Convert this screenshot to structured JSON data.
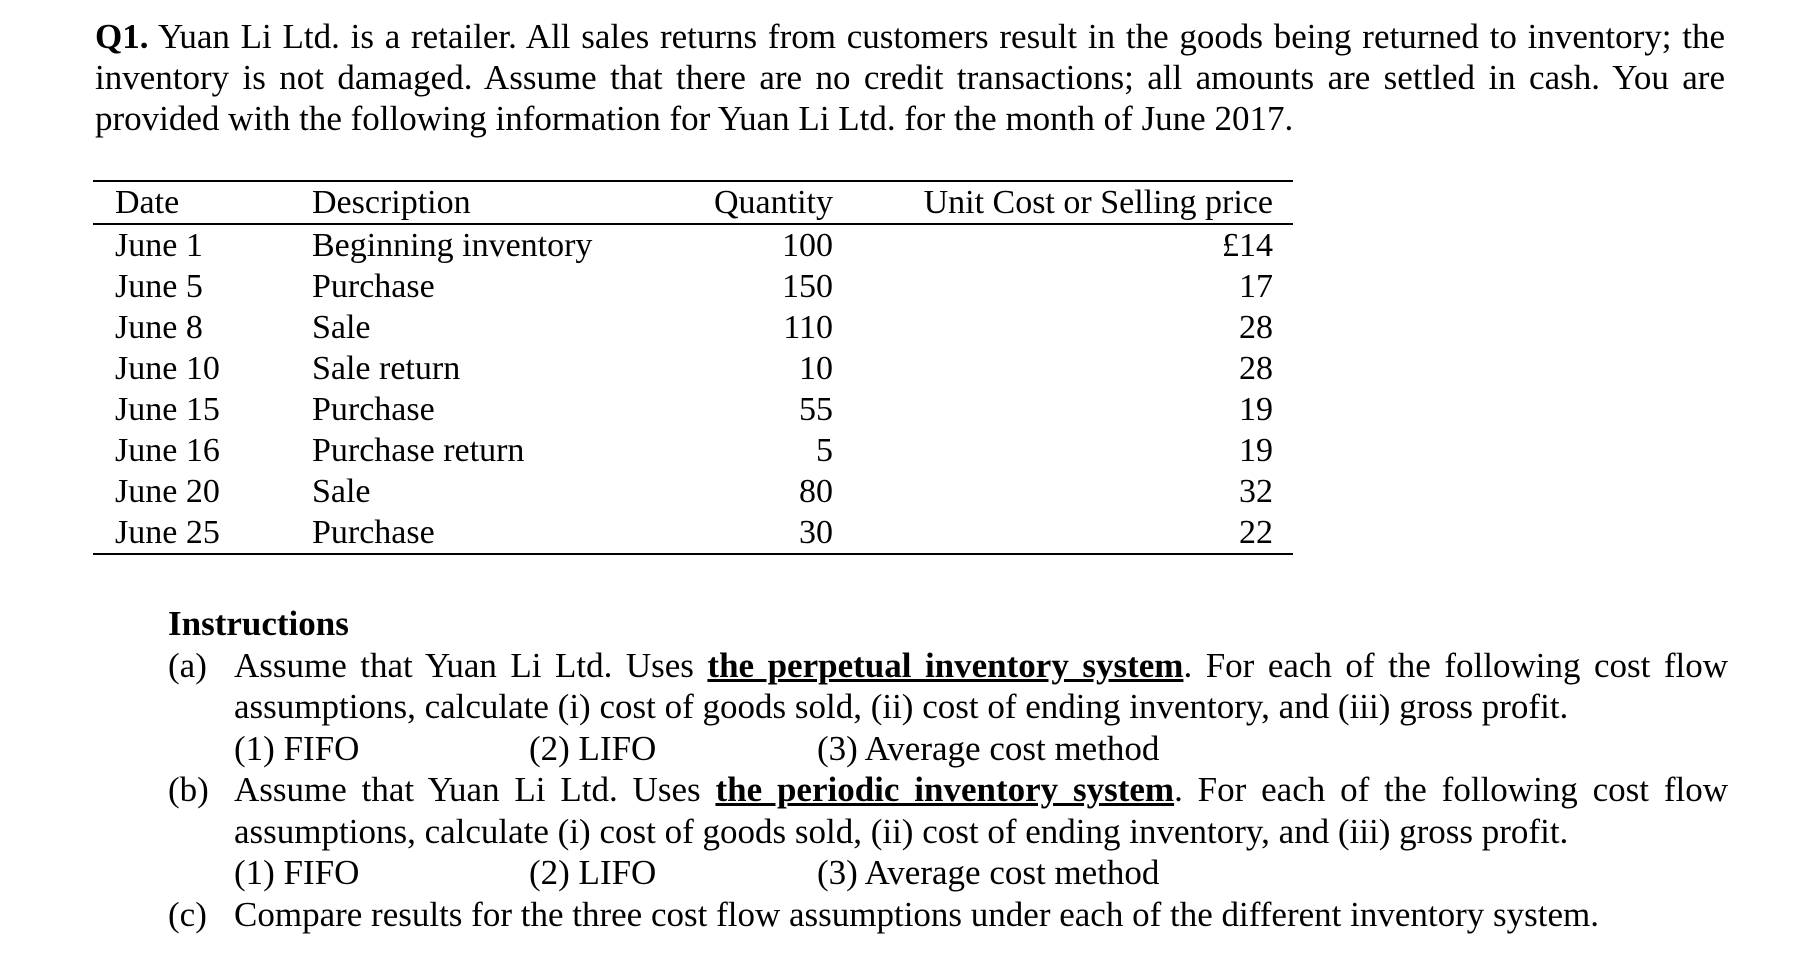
{
  "intro": {
    "question_label": "Q1.",
    "text": "Yuan Li Ltd. is a retailer. All sales returns from customers result in the goods being returned to inventory; the inventory is not damaged. Assume that there are no credit transactions; all amounts are settled in cash. You are provided with the following information for Yuan Li Ltd. for the month of June 2017."
  },
  "table": {
    "headers": [
      "Date",
      "Description",
      "Quantity",
      "Unit Cost or Selling price"
    ],
    "rows": [
      [
        "June 1",
        "Beginning inventory",
        "100",
        "£14"
      ],
      [
        "June 5",
        "Purchase",
        "150",
        "17"
      ],
      [
        "June 8",
        "Sale",
        "110",
        "28"
      ],
      [
        "June 10",
        "Sale return",
        "10",
        "28"
      ],
      [
        "June 15",
        "Purchase",
        "55",
        "19"
      ],
      [
        "June 16",
        "Purchase return",
        "5",
        "19"
      ],
      [
        "June 20",
        "Sale",
        "80",
        "32"
      ],
      [
        "June 25",
        "Purchase",
        "30",
        "22"
      ]
    ]
  },
  "instructions": {
    "heading": "Instructions",
    "parts": [
      {
        "marker": "(a)",
        "pre": "Assume that Yuan Li Ltd. Uses ",
        "emph": "the perpetual inventory system",
        "post": ". For each of the following cost flow assumptions, calculate (i) cost of goods sold, (ii) cost of ending inventory, and (iii) gross profit.",
        "methods": [
          "(1) FIFO",
          "(2) LIFO",
          "(3) Average cost method"
        ]
      },
      {
        "marker": "(b)",
        "pre": "Assume that Yuan Li Ltd. Uses ",
        "emph": "the periodic inventory system",
        "post": ". For each of the following cost flow assumptions, calculate (i) cost of goods sold, (ii) cost of ending inventory, and (iii) gross profit.",
        "methods": [
          "(1) FIFO",
          "(2) LIFO",
          "(3) Average cost method"
        ]
      },
      {
        "marker": "(c)",
        "text": "Compare results for the three cost flow assumptions under each of the different inventory system."
      }
    ]
  }
}
